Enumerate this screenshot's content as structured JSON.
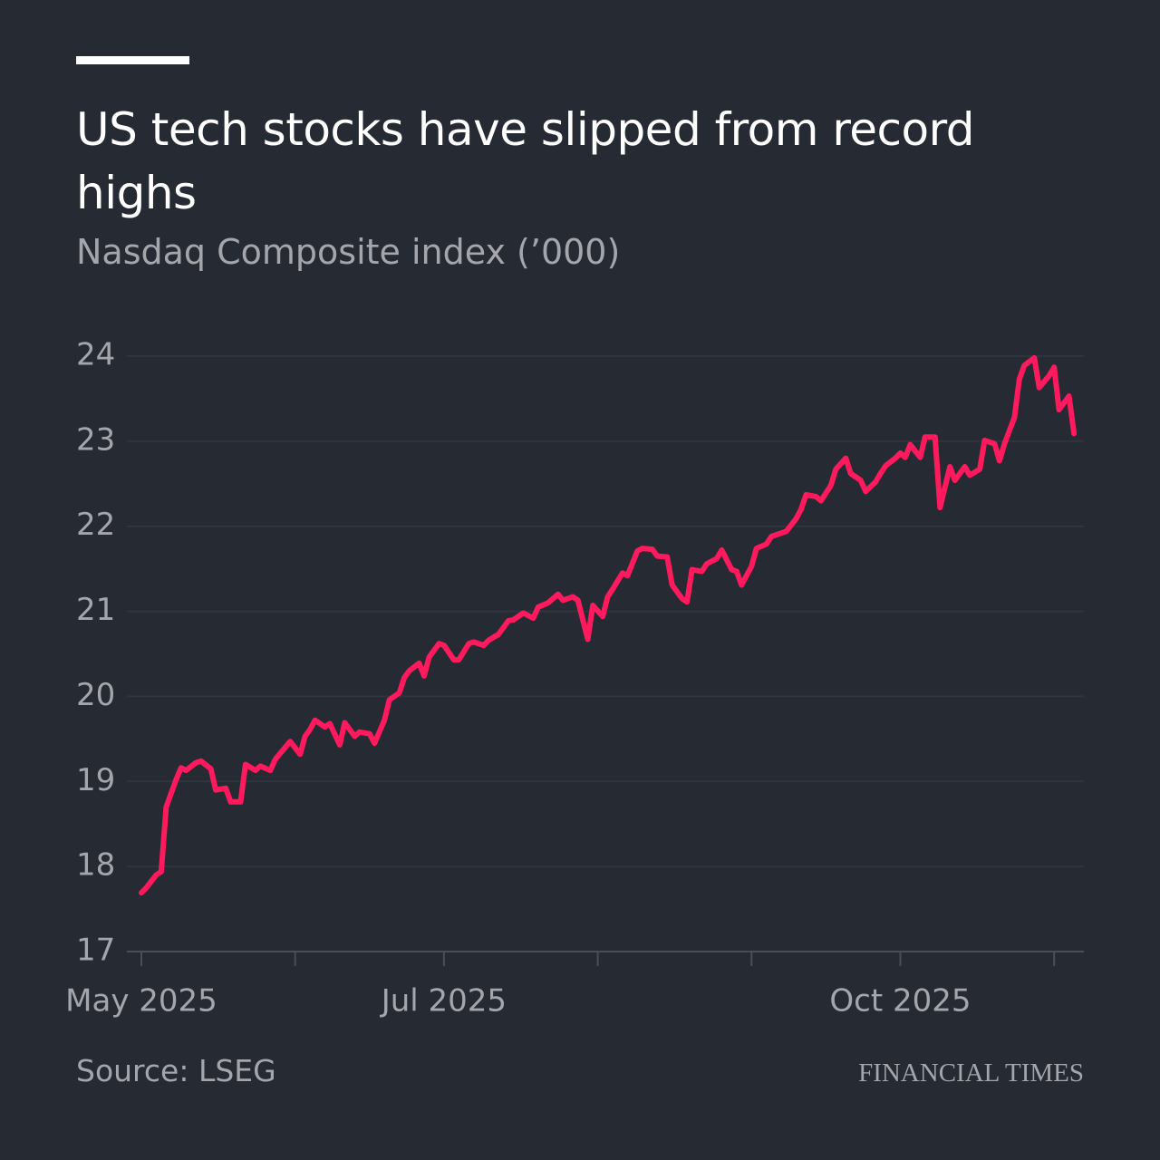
{
  "chart_data": {
    "type": "line",
    "title": "US tech stocks have slipped from record highs",
    "subtitle": "Nasdaq Composite index (’000)",
    "source": "Source: LSEG",
    "brand": "FINANCIAL TIMES",
    "xlim": [
      0,
      190
    ],
    "xticks": [
      {
        "value": 0,
        "label": "May 2025"
      },
      {
        "value": 31,
        "label": null
      },
      {
        "value": 61,
        "label": "Jul 2025"
      },
      {
        "value": 92,
        "label": null
      },
      {
        "value": 123,
        "label": null
      },
      {
        "value": 153,
        "label": "Oct 2025"
      },
      {
        "value": 184,
        "label": null
      }
    ],
    "ylim": [
      17,
      24
    ],
    "yticks": [
      17,
      18,
      19,
      20,
      21,
      22,
      23,
      24
    ],
    "grid": true,
    "color": "#ff1a5e",
    "x": [
      0,
      1,
      3,
      4,
      5,
      7,
      8,
      9,
      11,
      12,
      14,
      15,
      17,
      18,
      20,
      21,
      23,
      24,
      26,
      27,
      29,
      30,
      32,
      33,
      34,
      35,
      37,
      38,
      40,
      41,
      43,
      44,
      46,
      47,
      49,
      50,
      52,
      53,
      54,
      56,
      57,
      58,
      60,
      61,
      63,
      64,
      66,
      67,
      69,
      70,
      72,
      74,
      75,
      77,
      79,
      80,
      82,
      84,
      85,
      87,
      88,
      90,
      91,
      93,
      94,
      95,
      97,
      98,
      100,
      101,
      103,
      104,
      106,
      107,
      109,
      110,
      111,
      113,
      114,
      116,
      117,
      119,
      120,
      121,
      123,
      124,
      126,
      127,
      129,
      130,
      132,
      133,
      134,
      136,
      137,
      139,
      140,
      142,
      143,
      145,
      146,
      148,
      149,
      150,
      152,
      153,
      154,
      155,
      157,
      158,
      160,
      161,
      163,
      164,
      166,
      167,
      169,
      170,
      172,
      173,
      174,
      176,
      177,
      178,
      180,
      181,
      183,
      184,
      185,
      187,
      188
    ],
    "values": [
      17.69,
      17.75,
      17.9,
      17.94,
      18.7,
      19.02,
      19.16,
      19.13,
      19.22,
      19.24,
      19.15,
      18.9,
      18.92,
      18.76,
      18.76,
      19.2,
      19.13,
      19.18,
      19.13,
      19.26,
      19.4,
      19.47,
      19.32,
      19.53,
      19.61,
      19.72,
      19.64,
      19.68,
      19.43,
      19.69,
      19.53,
      19.58,
      19.56,
      19.45,
      19.72,
      19.96,
      20.04,
      20.22,
      20.3,
      20.39,
      20.24,
      20.46,
      20.62,
      20.6,
      20.43,
      20.43,
      20.62,
      20.64,
      20.6,
      20.66,
      20.73,
      20.89,
      20.9,
      20.98,
      20.92,
      21.05,
      21.1,
      21.2,
      21.13,
      21.17,
      21.13,
      20.67,
      21.07,
      20.94,
      21.17,
      21.26,
      21.45,
      21.42,
      21.71,
      21.74,
      21.73,
      21.65,
      21.64,
      21.31,
      21.15,
      21.11,
      21.49,
      21.47,
      21.56,
      21.62,
      21.72,
      21.49,
      21.47,
      21.31,
      21.53,
      21.74,
      21.79,
      21.88,
      21.92,
      21.94,
      22.09,
      22.2,
      22.37,
      22.35,
      22.3,
      22.48,
      22.67,
      22.8,
      22.62,
      22.54,
      22.41,
      22.52,
      22.62,
      22.71,
      22.8,
      22.86,
      22.81,
      22.96,
      22.81,
      23.05,
      23.05,
      22.22,
      22.7,
      22.54,
      22.7,
      22.6,
      22.67,
      23.01,
      22.97,
      22.77,
      22.97,
      23.28,
      23.73,
      23.89,
      23.98,
      23.63,
      23.77,
      23.87,
      23.37,
      23.53,
      23.09
    ]
  }
}
